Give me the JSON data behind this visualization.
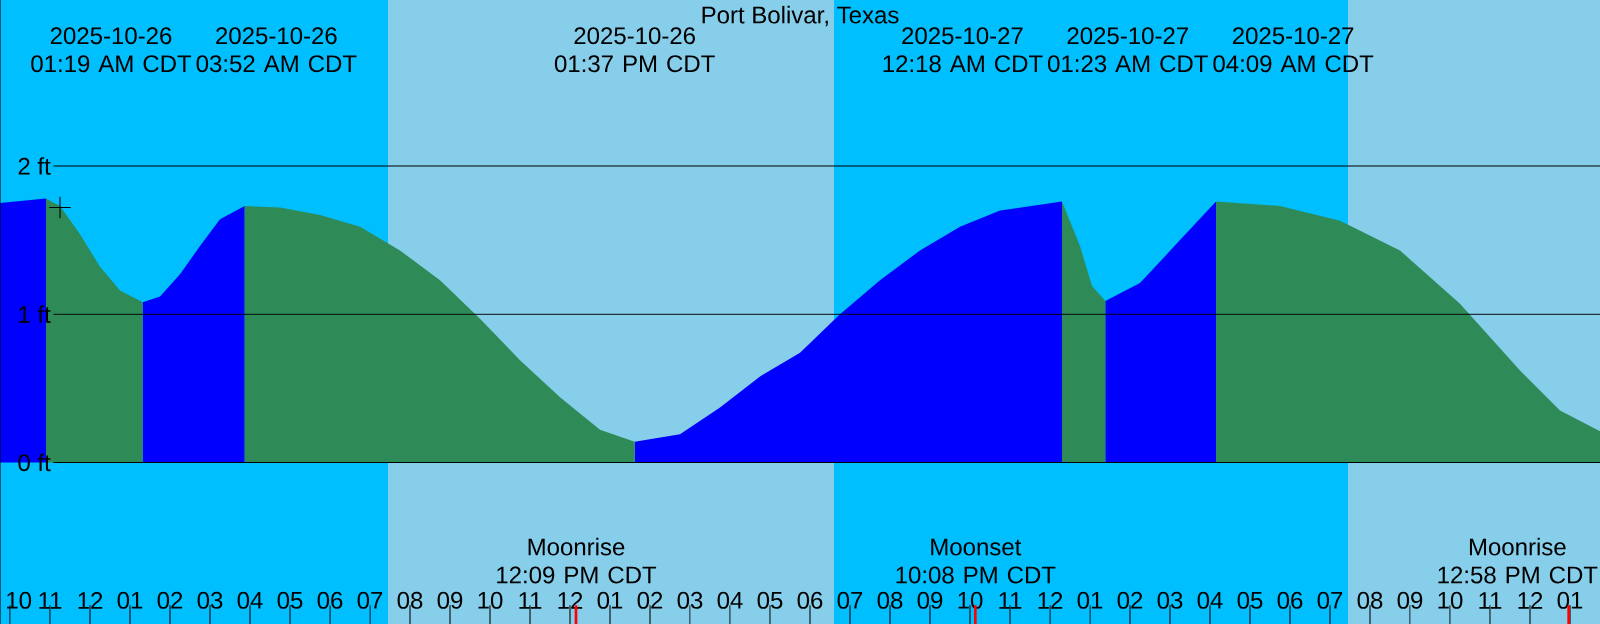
{
  "chart_data": {
    "type": "area",
    "title": "Port Bolivar, Texas",
    "xlim": [
      "2025-10-25T21:45",
      "2025-10-27T13:45"
    ],
    "ylim": [
      -1.09,
      3.12
    ],
    "xticks": [
      {
        "value": "2025-10-25T22:00",
        "label": "10"
      },
      {
        "value": "2025-10-25T23:00",
        "label": "11"
      },
      {
        "value": "2025-10-26T00:00",
        "label": "12"
      },
      {
        "value": "2025-10-26T01:00",
        "label": "01"
      },
      {
        "value": "2025-10-26T02:00",
        "label": "02"
      },
      {
        "value": "2025-10-26T03:00",
        "label": "03"
      },
      {
        "value": "2025-10-26T04:00",
        "label": "04"
      },
      {
        "value": "2025-10-26T05:00",
        "label": "05"
      },
      {
        "value": "2025-10-26T06:00",
        "label": "06"
      },
      {
        "value": "2025-10-26T07:00",
        "label": "07"
      },
      {
        "value": "2025-10-26T08:00",
        "label": "08"
      },
      {
        "value": "2025-10-26T09:00",
        "label": "09"
      },
      {
        "value": "2025-10-26T10:00",
        "label": "10"
      },
      {
        "value": "2025-10-26T11:00",
        "label": "11"
      },
      {
        "value": "2025-10-26T12:00",
        "label": "12"
      },
      {
        "value": "2025-10-26T13:00",
        "label": "01"
      },
      {
        "value": "2025-10-26T14:00",
        "label": "02"
      },
      {
        "value": "2025-10-26T15:00",
        "label": "03"
      },
      {
        "value": "2025-10-26T16:00",
        "label": "04"
      },
      {
        "value": "2025-10-26T17:00",
        "label": "05"
      },
      {
        "value": "2025-10-26T18:00",
        "label": "06"
      },
      {
        "value": "2025-10-26T19:00",
        "label": "07"
      },
      {
        "value": "2025-10-26T20:00",
        "label": "08"
      },
      {
        "value": "2025-10-26T21:00",
        "label": "09"
      },
      {
        "value": "2025-10-26T22:00",
        "label": "10"
      },
      {
        "value": "2025-10-26T23:00",
        "label": "11"
      },
      {
        "value": "2025-10-27T00:00",
        "label": "12"
      },
      {
        "value": "2025-10-27T01:00",
        "label": "01"
      },
      {
        "value": "2025-10-27T02:00",
        "label": "02"
      },
      {
        "value": "2025-10-27T03:00",
        "label": "03"
      },
      {
        "value": "2025-10-27T04:00",
        "label": "04"
      },
      {
        "value": "2025-10-27T05:00",
        "label": "05"
      },
      {
        "value": "2025-10-27T06:00",
        "label": "06"
      },
      {
        "value": "2025-10-27T07:00",
        "label": "07"
      },
      {
        "value": "2025-10-27T08:00",
        "label": "08"
      },
      {
        "value": "2025-10-27T09:00",
        "label": "09"
      },
      {
        "value": "2025-10-27T10:00",
        "label": "10"
      },
      {
        "value": "2025-10-27T11:00",
        "label": "11"
      },
      {
        "value": "2025-10-27T12:00",
        "label": "12"
      },
      {
        "value": "2025-10-27T13:00",
        "label": "01"
      }
    ],
    "yticks": [
      {
        "value": 0,
        "label": "0 ft"
      },
      {
        "value": 1,
        "label": "1 ft"
      },
      {
        "value": 2,
        "label": "2 ft"
      }
    ],
    "grid": "y",
    "x": [
      "2025-10-25T21:45",
      "2025-10-25T22:54",
      "2025-10-25T23:15",
      "2025-10-25T23:45",
      "2025-10-26T00:15",
      "2025-10-26T00:45",
      "2025-10-26T01:19",
      "2025-10-26T01:45",
      "2025-10-26T02:15",
      "2025-10-26T02:45",
      "2025-10-26T03:15",
      "2025-10-26T03:52",
      "2025-10-26T04:45",
      "2025-10-26T05:45",
      "2025-10-26T06:45",
      "2025-10-26T07:45",
      "2025-10-26T08:45",
      "2025-10-26T09:45",
      "2025-10-26T10:45",
      "2025-10-26T11:45",
      "2025-10-26T12:45",
      "2025-10-26T13:37",
      "2025-10-26T14:45",
      "2025-10-26T15:45",
      "2025-10-26T16:45",
      "2025-10-26T17:45",
      "2025-10-26T18:45",
      "2025-10-26T19:45",
      "2025-10-26T20:45",
      "2025-10-26T21:45",
      "2025-10-26T22:45",
      "2025-10-27T00:18",
      "2025-10-27T00:45",
      "2025-10-27T01:03",
      "2025-10-27T01:23",
      "2025-10-27T02:15",
      "2025-10-27T03:15",
      "2025-10-27T04:09",
      "2025-10-27T05:45",
      "2025-10-27T07:15",
      "2025-10-27T08:45",
      "2025-10-27T10:15",
      "2025-10-27T11:45",
      "2025-10-27T12:45",
      "2025-10-27T13:45"
    ],
    "series": [
      {
        "color": "#0000ff",
        "values": [
          1.75,
          1.78,
          null,
          null,
          null,
          null,
          1.08,
          1.12,
          1.27,
          1.46,
          1.64,
          1.73,
          null,
          null,
          null,
          null,
          null,
          null,
          null,
          null,
          null,
          0.14,
          0.19,
          0.37,
          0.58,
          0.74,
          1.0,
          1.23,
          1.43,
          1.59,
          1.7,
          1.76,
          null,
          null,
          1.09,
          1.21,
          1.5,
          1.76,
          null,
          null,
          null,
          null,
          null,
          null,
          null
        ]
      },
      {
        "color": "#2e8b57",
        "values": [
          null,
          1.78,
          1.73,
          1.54,
          1.32,
          1.16,
          1.08,
          null,
          null,
          null,
          null,
          1.73,
          1.72,
          1.67,
          1.59,
          1.43,
          1.23,
          0.97,
          0.69,
          0.44,
          0.22,
          0.14,
          null,
          null,
          null,
          null,
          null,
          null,
          null,
          null,
          null,
          1.76,
          1.46,
          1.19,
          1.09,
          null,
          null,
          1.76,
          1.73,
          1.63,
          1.43,
          1.07,
          0.62,
          0.35,
          0.21
        ]
      },
      {
        "type": "scatter",
        "marker": "cross",
        "color": "#000000",
        "x": [
          "2025-10-25T23:15"
        ],
        "values": [
          1.72
        ]
      }
    ],
    "bands": [
      {
        "axis": "x",
        "from": "2025-10-25T21:45",
        "to": "2025-10-26T07:27",
        "color": "#00bfff"
      },
      {
        "axis": "x",
        "from": "2025-10-26T07:27",
        "to": "2025-10-26T18:36",
        "color": "#87ceeb"
      },
      {
        "axis": "x",
        "from": "2025-10-26T18:36",
        "to": "2025-10-27T07:27",
        "color": "#00bfff"
      },
      {
        "axis": "x",
        "from": "2025-10-27T07:27",
        "to": "2025-10-27T13:45",
        "color": "#87ceeb"
      }
    ],
    "ref_lines": [
      {
        "axis": "x",
        "value": "2025-10-26T12:09",
        "label": "Moonrise 12:09 PM CDT",
        "color": "#ff0000"
      },
      {
        "axis": "x",
        "value": "2025-10-26T22:08",
        "label": "Moonset 10:08 PM CDT",
        "color": "#ff0000"
      },
      {
        "axis": "x",
        "value": "2025-10-27T12:58",
        "label": "Moonrise 12:58 PM CDT",
        "color": "#ff0000"
      }
    ],
    "annotations": [
      "2025-10-26 01:19 AM CDT",
      "2025-10-26 03:52 AM CDT",
      "2025-10-26 01:37 PM CDT",
      "2025-10-27 12:18 AM CDT",
      "2025-10-27 01:23 AM CDT",
      "2025-10-27 04:09 AM CDT"
    ]
  }
}
